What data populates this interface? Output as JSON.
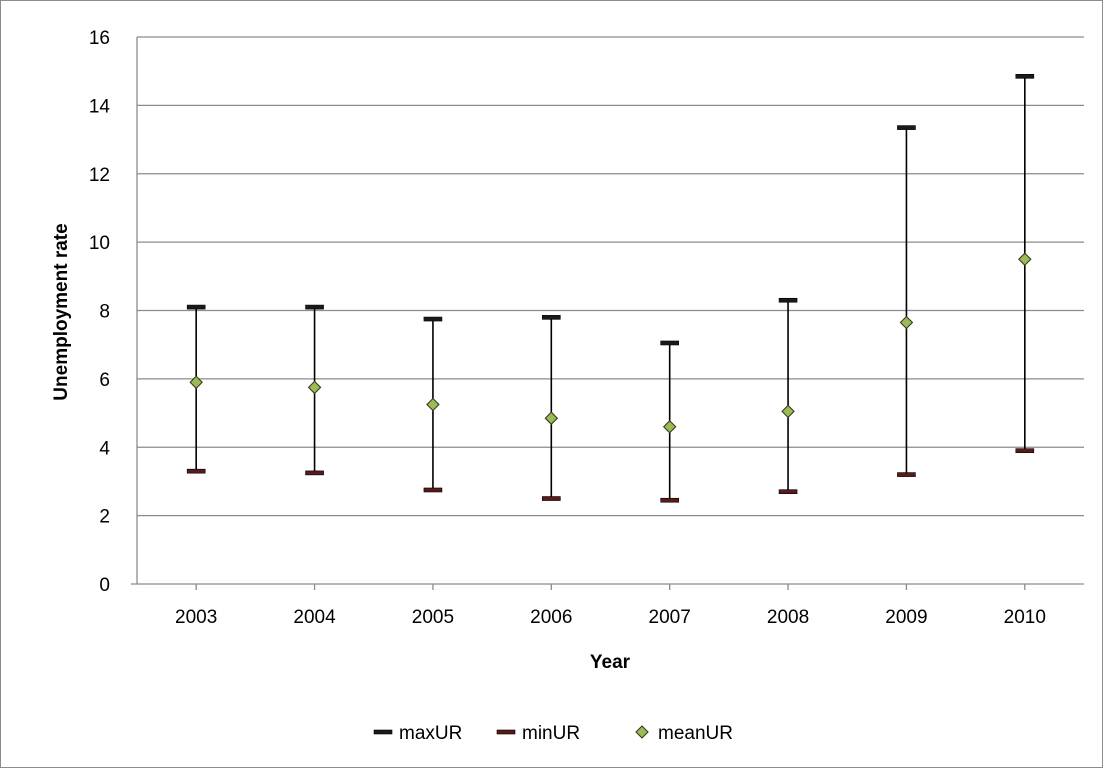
{
  "chart_data": {
    "type": "scatter",
    "title": "",
    "xlabel": "Year",
    "ylabel": "Unemployment rate",
    "categories": [
      "2003",
      "2004",
      "2005",
      "2006",
      "2007",
      "2008",
      "2009",
      "2010"
    ],
    "ylim": [
      0,
      16
    ],
    "yticks": [
      "0",
      "2",
      "4",
      "6",
      "8",
      "10",
      "12",
      "14",
      "16"
    ],
    "grid": true,
    "legend_position": "bottom",
    "series": [
      {
        "name": "maxUR",
        "marker": "dash",
        "color": "#1a1a1a",
        "values": [
          8.1,
          8.1,
          7.75,
          7.8,
          7.05,
          8.3,
          13.35,
          14.85
        ]
      },
      {
        "name": "minUR",
        "marker": "dash",
        "color": "#5a1a1a",
        "values": [
          3.3,
          3.25,
          2.75,
          2.5,
          2.45,
          2.7,
          3.2,
          3.9
        ]
      },
      {
        "name": "meanUR",
        "marker": "diamond",
        "color": "#9bbb59",
        "values": [
          5.9,
          5.75,
          5.25,
          4.85,
          4.6,
          5.05,
          7.65,
          9.5
        ]
      }
    ],
    "colors": {
      "gridline": "#8c8c8c",
      "axis": "#8c8c8c",
      "error_bar": "#000000",
      "diamond_stroke": "#3a3a1a"
    }
  }
}
